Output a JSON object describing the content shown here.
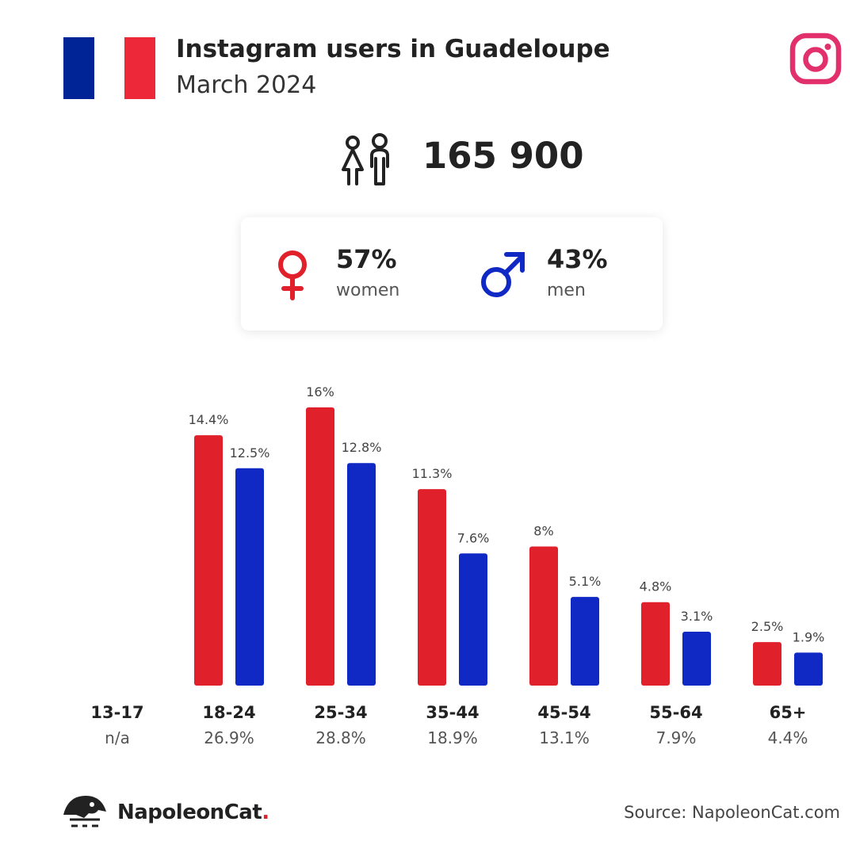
{
  "header": {
    "title": "Instagram users in Guadeloupe",
    "subtitle": "March 2024"
  },
  "flag": {
    "icon": "france-flag-icon",
    "colors": [
      "#002395",
      "#ffffff",
      "#ed2939"
    ]
  },
  "platform_icon": "instagram-icon",
  "total_users": "165 900",
  "gender": {
    "women": {
      "percent": "57%",
      "label": "women",
      "color": "#e0202a",
      "icon": "female-symbol-icon"
    },
    "men": {
      "percent": "43%",
      "label": "men",
      "color": "#1029c4",
      "icon": "male-symbol-icon"
    }
  },
  "colors": {
    "women": "#e0202a",
    "men": "#1029c4"
  },
  "chart_data": {
    "type": "bar",
    "categories": [
      "13-17",
      "18-24",
      "25-34",
      "35-44",
      "45-54",
      "55-64",
      "65+"
    ],
    "category_totals": [
      "n/a",
      "26.9%",
      "28.8%",
      "18.9%",
      "13.1%",
      "7.9%",
      "4.4%"
    ],
    "series": [
      {
        "values": [
          null,
          14.4,
          16,
          11.3,
          8,
          4.8,
          2.5
        ],
        "labels": [
          "",
          "14.4%",
          "16%",
          "11.3%",
          "8%",
          "4.8%",
          "2.5%"
        ],
        "color": "#e0202a"
      },
      {
        "values": [
          null,
          12.5,
          12.8,
          7.6,
          5.1,
          3.1,
          1.9
        ],
        "labels": [
          "",
          "12.5%",
          "12.8%",
          "7.6%",
          "5.1%",
          "3.1%",
          "1.9%"
        ],
        "color": "#1029c4"
      }
    ],
    "ylim": [
      0,
      16
    ],
    "grid": false,
    "legend": "none"
  },
  "footer": {
    "brand_name": "NapoleonCat",
    "brand_dot": ".",
    "brand_icon": "napoleoncat-logo-icon",
    "source": "Source: NapoleonCat.com"
  }
}
